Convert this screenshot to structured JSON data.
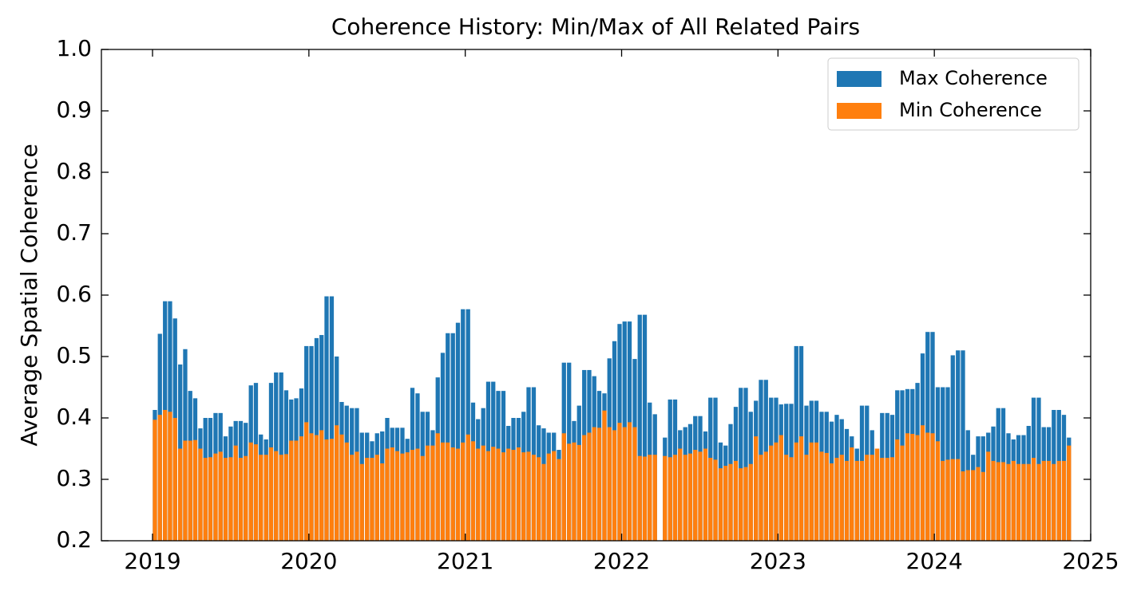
{
  "chart_data": {
    "type": "bar",
    "title": "Coherence History: Min/Max of All Related Pairs",
    "y_label": "Average Spatial Coherence",
    "x": [
      2019.015,
      2019.047,
      2019.08,
      2019.112,
      2019.144,
      2019.177,
      2019.209,
      2019.241,
      2019.273,
      2019.306,
      2019.338,
      2019.37,
      2019.403,
      2019.435,
      2019.467,
      2019.5,
      2019.532,
      2019.564,
      2019.596,
      2019.629,
      2019.661,
      2019.693,
      2019.726,
      2019.758,
      2019.79,
      2019.823,
      2019.855,
      2019.887,
      2019.919,
      2019.952,
      2019.984,
      2020.016,
      2020.049,
      2020.081,
      2020.113,
      2020.146,
      2020.178,
      2020.21,
      2020.242,
      2020.275,
      2020.307,
      2020.339,
      2020.372,
      2020.404,
      2020.436,
      2020.469,
      2020.501,
      2020.533,
      2020.565,
      2020.598,
      2020.63,
      2020.662,
      2020.695,
      2020.727,
      2020.759,
      2020.792,
      2020.824,
      2020.856,
      2020.888,
      2020.921,
      2020.953,
      2020.985,
      2021.018,
      2021.05,
      2021.082,
      2021.115,
      2021.147,
      2021.179,
      2021.211,
      2021.244,
      2021.276,
      2021.308,
      2021.341,
      2021.373,
      2021.405,
      2021.438,
      2021.47,
      2021.502,
      2021.534,
      2021.567,
      2021.599,
      2021.631,
      2021.664,
      2021.696,
      2021.728,
      2021.761,
      2021.793,
      2021.825,
      2021.857,
      2021.89,
      2021.922,
      2021.954,
      2021.987,
      2022.019,
      2022.051,
      2022.084,
      2022.116,
      2022.148,
      2022.18,
      2022.213,
      2022.277,
      2022.31,
      2022.342,
      2022.374,
      2022.407,
      2022.439,
      2022.471,
      2022.503,
      2022.536,
      2022.568,
      2022.6,
      2022.633,
      2022.665,
      2022.697,
      2022.73,
      2022.762,
      2022.794,
      2022.826,
      2022.859,
      2022.891,
      2022.923,
      2022.956,
      2022.988,
      2023.02,
      2023.053,
      2023.085,
      2023.117,
      2023.149,
      2023.182,
      2023.214,
      2023.246,
      2023.279,
      2023.311,
      2023.343,
      2023.376,
      2023.408,
      2023.44,
      2023.472,
      2023.505,
      2023.537,
      2023.569,
      2023.602,
      2023.634,
      2023.666,
      2023.699,
      2023.731,
      2023.763,
      2023.795,
      2023.828,
      2023.86,
      2023.892,
      2023.925,
      2023.957,
      2023.989,
      2024.022,
      2024.054,
      2024.086,
      2024.118,
      2024.151,
      2024.183,
      2024.215,
      2024.248,
      2024.28,
      2024.312,
      2024.345,
      2024.377,
      2024.409,
      2024.441,
      2024.474,
      2024.506,
      2024.538,
      2024.571,
      2024.603,
      2024.635,
      2024.668,
      2024.7,
      2024.732,
      2024.764,
      2024.797,
      2024.829,
      2024.861
    ],
    "series": [
      {
        "name": "Max Coherence",
        "color": "#1f77b4",
        "values": [
          0.413,
          0.537,
          0.59,
          0.59,
          0.562,
          0.487,
          0.512,
          0.444,
          0.432,
          0.383,
          0.4,
          0.4,
          0.408,
          0.408,
          0.37,
          0.386,
          0.395,
          0.395,
          0.392,
          0.453,
          0.457,
          0.373,
          0.365,
          0.457,
          0.474,
          0.474,
          0.445,
          0.43,
          0.432,
          0.448,
          0.517,
          0.517,
          0.53,
          0.535,
          0.598,
          0.598,
          0.5,
          0.426,
          0.42,
          0.416,
          0.416,
          0.376,
          0.376,
          0.362,
          0.375,
          0.378,
          0.4,
          0.384,
          0.384,
          0.384,
          0.366,
          0.449,
          0.44,
          0.41,
          0.41,
          0.38,
          0.466,
          0.506,
          0.538,
          0.538,
          0.555,
          0.577,
          0.577,
          0.425,
          0.398,
          0.416,
          0.459,
          0.459,
          0.444,
          0.444,
          0.387,
          0.4,
          0.4,
          0.41,
          0.45,
          0.45,
          0.388,
          0.383,
          0.376,
          0.376,
          0.348,
          0.49,
          0.49,
          0.395,
          0.42,
          0.478,
          0.478,
          0.468,
          0.444,
          0.44,
          0.497,
          0.525,
          0.553,
          0.557,
          0.557,
          0.496,
          0.568,
          0.568,
          0.425,
          0.406,
          0.368,
          0.43,
          0.43,
          0.38,
          0.385,
          0.39,
          0.403,
          0.403,
          0.378,
          0.433,
          0.433,
          0.36,
          0.355,
          0.39,
          0.418,
          0.449,
          0.449,
          0.41,
          0.428,
          0.462,
          0.462,
          0.433,
          0.433,
          0.422,
          0.423,
          0.423,
          0.517,
          0.517,
          0.42,
          0.428,
          0.428,
          0.41,
          0.41,
          0.394,
          0.405,
          0.398,
          0.382,
          0.37,
          0.35,
          0.42,
          0.42,
          0.38,
          0.35,
          0.408,
          0.408,
          0.405,
          0.445,
          0.445,
          0.447,
          0.447,
          0.457,
          0.505,
          0.54,
          0.54,
          0.45,
          0.45,
          0.45,
          0.502,
          0.51,
          0.51,
          0.38,
          0.34,
          0.37,
          0.37,
          0.376,
          0.386,
          0.416,
          0.416,
          0.375,
          0.365,
          0.372,
          0.372,
          0.387,
          0.433,
          0.433,
          0.385,
          0.385,
          0.413,
          0.413,
          0.405,
          0.368
        ]
      },
      {
        "name": "Min Coherence",
        "color": "#ff7f0e",
        "values": [
          0.397,
          0.405,
          0.413,
          0.41,
          0.4,
          0.35,
          0.363,
          0.363,
          0.364,
          0.35,
          0.335,
          0.336,
          0.342,
          0.345,
          0.335,
          0.336,
          0.355,
          0.335,
          0.338,
          0.36,
          0.357,
          0.34,
          0.34,
          0.352,
          0.346,
          0.34,
          0.341,
          0.363,
          0.363,
          0.37,
          0.393,
          0.375,
          0.372,
          0.38,
          0.365,
          0.366,
          0.388,
          0.373,
          0.36,
          0.34,
          0.345,
          0.325,
          0.335,
          0.335,
          0.34,
          0.326,
          0.35,
          0.352,
          0.346,
          0.342,
          0.344,
          0.348,
          0.35,
          0.338,
          0.355,
          0.355,
          0.375,
          0.36,
          0.36,
          0.352,
          0.35,
          0.36,
          0.373,
          0.362,
          0.35,
          0.355,
          0.346,
          0.353,
          0.35,
          0.344,
          0.35,
          0.348,
          0.352,
          0.344,
          0.345,
          0.34,
          0.336,
          0.325,
          0.342,
          0.346,
          0.333,
          0.375,
          0.358,
          0.36,
          0.356,
          0.372,
          0.376,
          0.385,
          0.384,
          0.412,
          0.385,
          0.38,
          0.392,
          0.385,
          0.393,
          0.385,
          0.338,
          0.337,
          0.34,
          0.34,
          0.338,
          0.336,
          0.34,
          0.35,
          0.34,
          0.342,
          0.348,
          0.345,
          0.35,
          0.335,
          0.332,
          0.318,
          0.322,
          0.325,
          0.33,
          0.318,
          0.32,
          0.325,
          0.37,
          0.34,
          0.345,
          0.355,
          0.36,
          0.372,
          0.34,
          0.336,
          0.36,
          0.37,
          0.34,
          0.36,
          0.36,
          0.345,
          0.343,
          0.326,
          0.335,
          0.34,
          0.33,
          0.352,
          0.33,
          0.33,
          0.34,
          0.34,
          0.35,
          0.335,
          0.335,
          0.336,
          0.365,
          0.355,
          0.375,
          0.374,
          0.372,
          0.388,
          0.376,
          0.375,
          0.362,
          0.33,
          0.332,
          0.333,
          0.333,
          0.313,
          0.315,
          0.315,
          0.32,
          0.312,
          0.345,
          0.33,
          0.328,
          0.328,
          0.325,
          0.33,
          0.325,
          0.325,
          0.325,
          0.335,
          0.325,
          0.33,
          0.33,
          0.325,
          0.33,
          0.33,
          0.355
        ]
      }
    ],
    "xlim": [
      2018.673,
      2025.0
    ],
    "xticks": [
      2019,
      2020,
      2021,
      2022,
      2023,
      2024,
      2025
    ],
    "ylim": [
      0.2,
      1.0
    ],
    "yticks": [
      0.2,
      0.3,
      0.4,
      0.5,
      0.6,
      0.7,
      0.8,
      0.9,
      {
        "value": 1.0,
        "label": "1.0"
      }
    ],
    "legend": "upper right"
  }
}
